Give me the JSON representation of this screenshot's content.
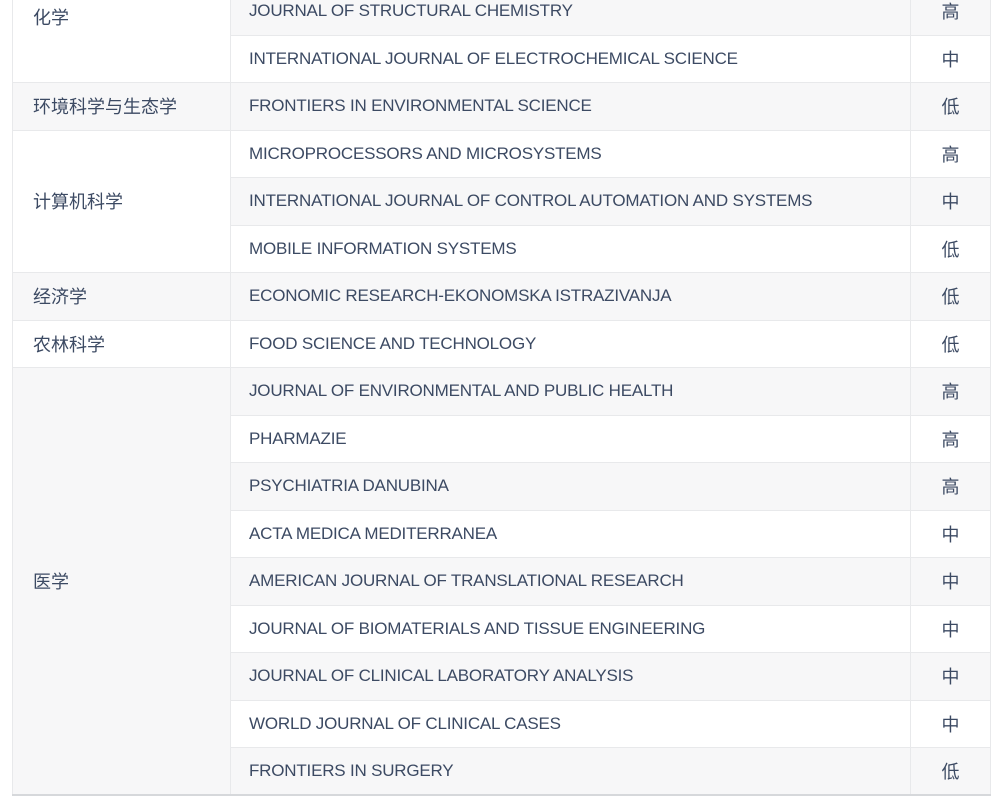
{
  "colors": {
    "text": "#3c4a63",
    "stripe_row_bg": "#f7f7f8",
    "plain_row_bg": "#ffffff",
    "inner_border": "#e8e9eb",
    "outer_border": "#d6d8db"
  },
  "risk_levels": {
    "high": "高",
    "medium": "中",
    "low": "低"
  },
  "table": {
    "groups": [
      {
        "category": "化学",
        "rows": [
          {
            "journal": "JOURNAL OF STRUCTURAL CHEMISTRY",
            "level": "高"
          },
          {
            "journal": "INTERNATIONAL JOURNAL OF ELECTROCHEMICAL SCIENCE",
            "level": "中"
          }
        ]
      },
      {
        "category": "环境科学与生态学",
        "rows": [
          {
            "journal": "FRONTIERS IN ENVIRONMENTAL SCIENCE",
            "level": "低"
          }
        ]
      },
      {
        "category": "计算机科学",
        "rows": [
          {
            "journal": "MICROPROCESSORS AND MICROSYSTEMS",
            "level": "高"
          },
          {
            "journal": "INTERNATIONAL JOURNAL OF CONTROL AUTOMATION AND SYSTEMS",
            "level": "中"
          },
          {
            "journal": "MOBILE INFORMATION SYSTEMS",
            "level": "低"
          }
        ]
      },
      {
        "category": "经济学",
        "rows": [
          {
            "journal": "ECONOMIC RESEARCH-EKONOMSKA ISTRAZIVANJA",
            "level": "低"
          }
        ]
      },
      {
        "category": "农林科学",
        "rows": [
          {
            "journal": "FOOD SCIENCE AND TECHNOLOGY",
            "level": "低"
          }
        ]
      },
      {
        "category": "医学",
        "rows": [
          {
            "journal": "JOURNAL OF ENVIRONMENTAL AND PUBLIC HEALTH",
            "level": "高"
          },
          {
            "journal": "PHARMAZIE",
            "level": "高"
          },
          {
            "journal": "PSYCHIATRIA DANUBINA",
            "level": "高"
          },
          {
            "journal": "ACTA MEDICA MEDITERRANEA",
            "level": "中"
          },
          {
            "journal": "AMERICAN JOURNAL OF TRANSLATIONAL RESEARCH",
            "level": "中"
          },
          {
            "journal": "JOURNAL OF BIOMATERIALS AND TISSUE ENGINEERING",
            "level": "中"
          },
          {
            "journal": "JOURNAL OF CLINICAL LABORATORY ANALYSIS",
            "level": "中"
          },
          {
            "journal": "WORLD JOURNAL OF CLINICAL CASES",
            "level": "中"
          },
          {
            "journal": "FRONTIERS IN SURGERY",
            "level": "低"
          }
        ]
      }
    ]
  }
}
